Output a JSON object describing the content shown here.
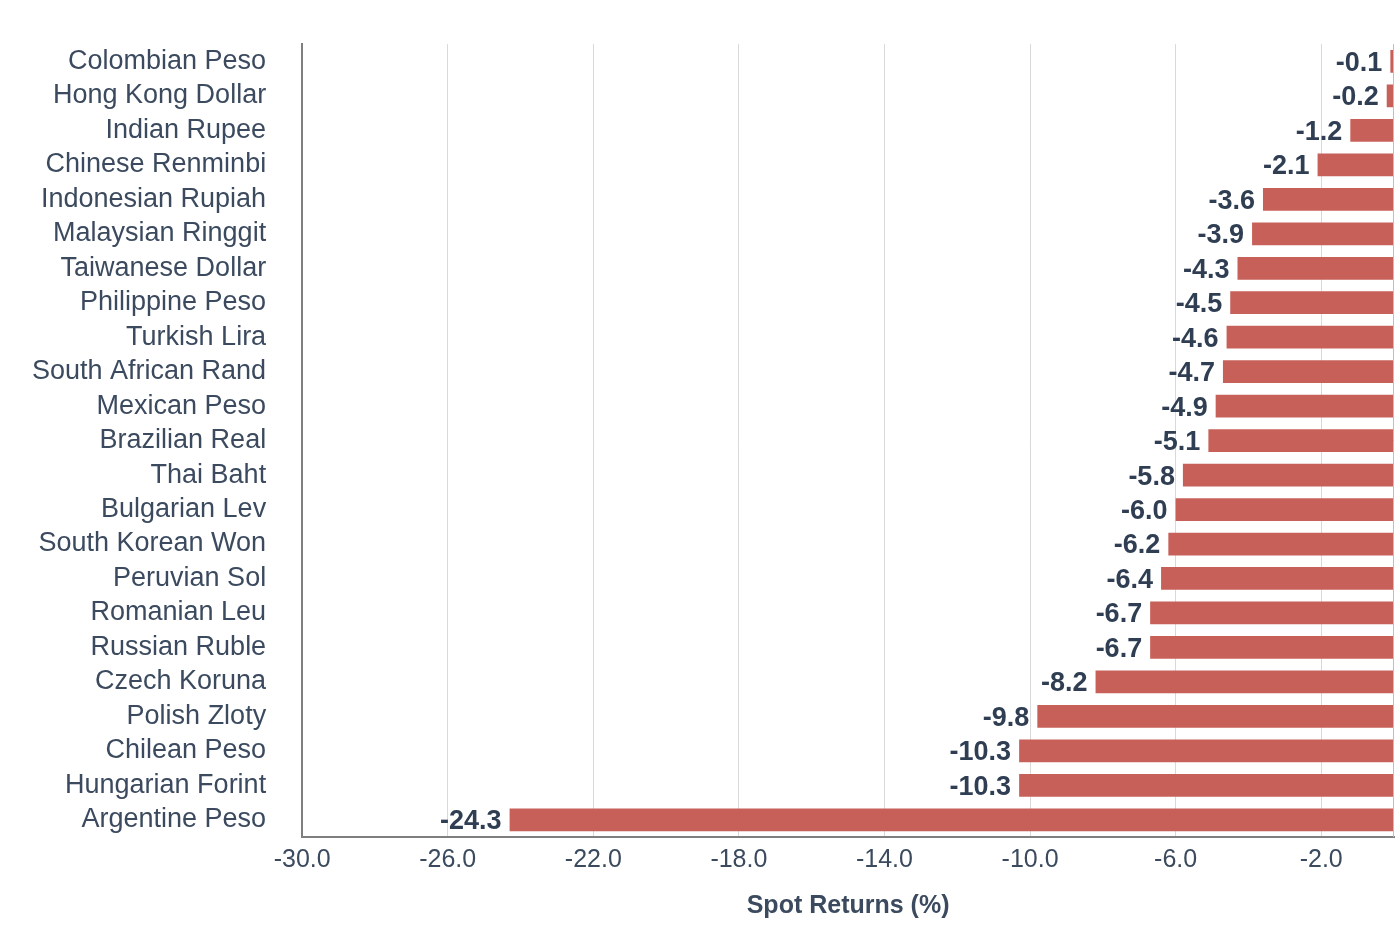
{
  "chart_data": {
    "type": "bar",
    "orientation": "horizontal",
    "categories": [
      "Colombian Peso",
      "Hong Kong Dollar",
      "Indian Rupee",
      "Chinese Renminbi",
      "Indonesian Rupiah",
      "Malaysian Ringgit",
      "Taiwanese Dollar",
      "Philippine Peso",
      "Turkish Lira",
      "South African Rand",
      "Mexican Peso",
      "Brazilian Real",
      "Thai Baht",
      "Bulgarian Lev",
      "South Korean Won",
      "Peruvian Sol",
      "Romanian Leu",
      "Russian Ruble",
      "Czech Koruna",
      "Polish Zloty",
      "Chilean Peso",
      "Hungarian Forint",
      "Argentine Peso"
    ],
    "values": [
      -0.1,
      -0.2,
      -1.2,
      -2.1,
      -3.6,
      -3.9,
      -4.3,
      -4.5,
      -4.6,
      -4.7,
      -4.9,
      -5.1,
      -5.8,
      -6.0,
      -6.2,
      -6.4,
      -6.7,
      -6.7,
      -8.2,
      -9.8,
      -10.3,
      -10.3,
      -24.3
    ],
    "value_labels": [
      "-0.1",
      "-0.2",
      "-1.2",
      "-2.1",
      "-3.6",
      "-3.9",
      "-4.3",
      "-4.5",
      "-4.6",
      "-4.7",
      "-4.9",
      "-5.1",
      "-5.8",
      "-6.0",
      "-6.2",
      "-6.4",
      "-6.7",
      "-6.7",
      "-8.2",
      "-9.8",
      "-10.3",
      "-10.3",
      "-24.3"
    ],
    "color": "#c8605a",
    "x_label": "Spot Returns (%)",
    "xlim": [
      -30,
      0
    ],
    "xticks": [
      {
        "value": -30,
        "label": "-30.0"
      },
      {
        "value": -26,
        "label": "-26.0"
      },
      {
        "value": -22,
        "label": "-22.0"
      },
      {
        "value": -18,
        "label": "-18.0"
      },
      {
        "value": -14,
        "label": "-14.0"
      },
      {
        "value": -10,
        "label": "-10.0"
      },
      {
        "value": -6,
        "label": "-6.0"
      },
      {
        "value": -2,
        "label": "-2.0"
      }
    ],
    "grid": true,
    "data_labels": true
  }
}
